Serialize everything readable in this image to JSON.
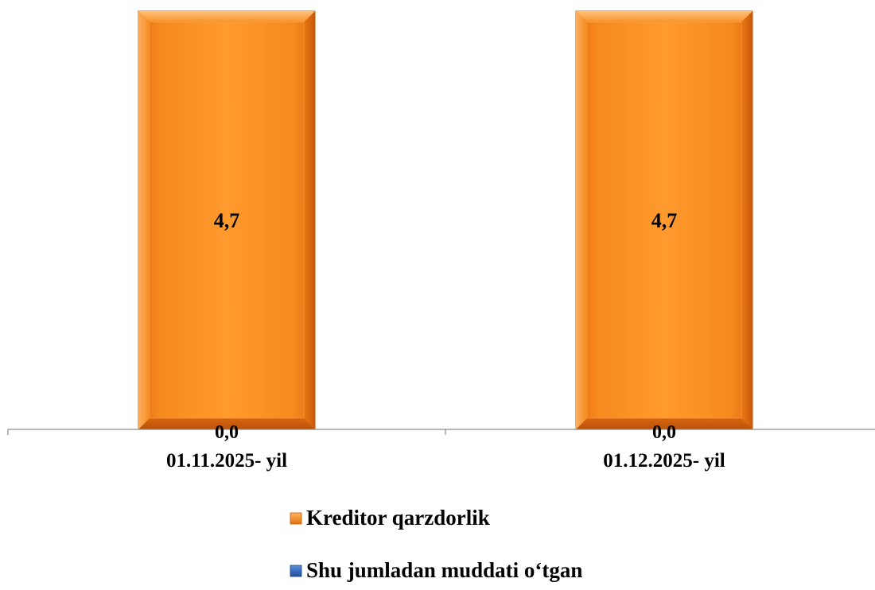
{
  "chart_data": {
    "type": "bar",
    "categories": [
      "01.11.2025- yil",
      "01.12.2025- yil"
    ],
    "series": [
      {
        "name": "Kreditor qarzdorlik",
        "values": [
          4.7,
          4.7
        ],
        "value_labels": [
          "4,7",
          "4,7"
        ],
        "color": "#F0861E"
      },
      {
        "name": "Shu jumladan muddati o‘tgan",
        "values": [
          0.0,
          0.0
        ],
        "value_labels": [
          "0,0",
          "0,0"
        ],
        "color": "#2E62B8"
      }
    ],
    "legend_position": "bottom",
    "grid": false,
    "y_axis_visible": false,
    "ylim": [
      0,
      4.7
    ]
  }
}
